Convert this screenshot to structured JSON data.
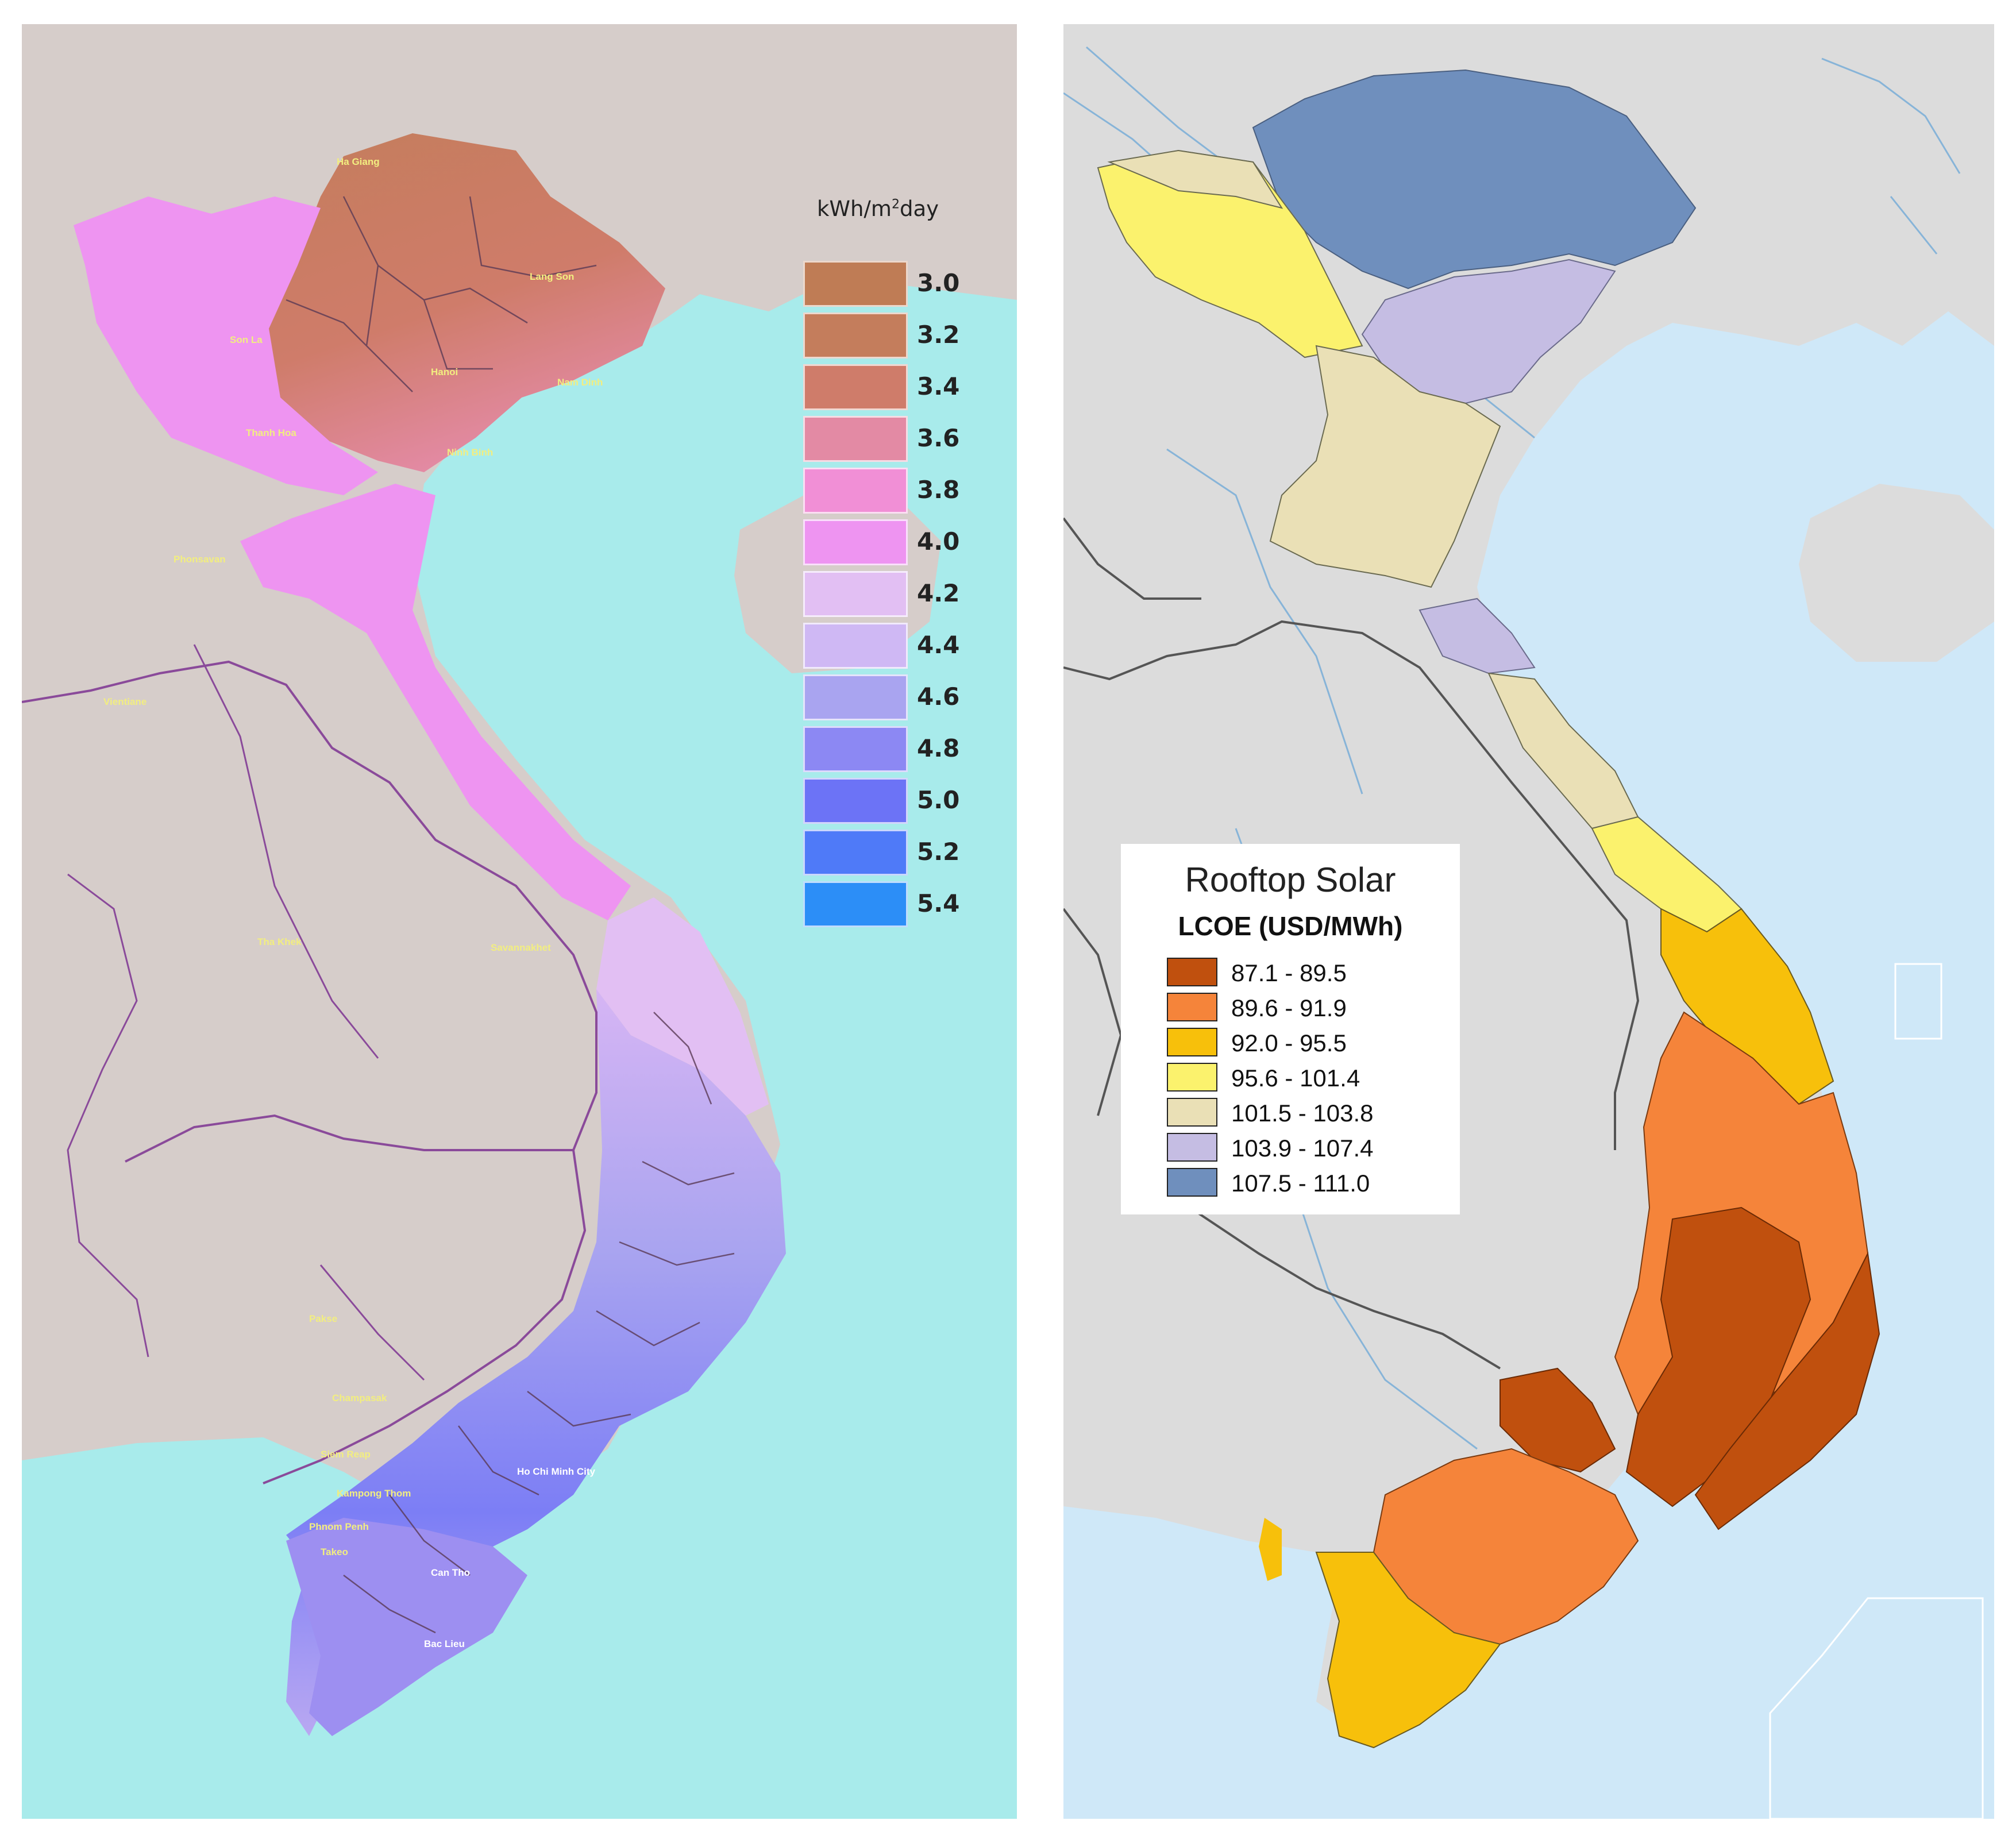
{
  "left_map": {
    "legend_title": "kWh/m",
    "legend_title_sup": "2",
    "legend_title_suffix": "day",
    "legend": [
      {
        "label": "3.0",
        "color": "#bf7c55"
      },
      {
        "label": "3.2",
        "color": "#c47d5c"
      },
      {
        "label": "3.4",
        "color": "#cf7c6a"
      },
      {
        "label": "3.6",
        "color": "#e38aa4"
      },
      {
        "label": "3.8",
        "color": "#f18fd6"
      },
      {
        "label": "4.0",
        "color": "#ee94f1"
      },
      {
        "label": "4.2",
        "color": "#e2bff3"
      },
      {
        "label": "4.4",
        "color": "#cfb8f4"
      },
      {
        "label": "4.6",
        "color": "#a9a4f0"
      },
      {
        "label": "4.8",
        "color": "#8c88f3"
      },
      {
        "label": "5.0",
        "color": "#6c73f6"
      },
      {
        "label": "5.2",
        "color": "#4f7af8"
      },
      {
        "label": "5.4",
        "color": "#2c8ef7"
      }
    ],
    "cities": [
      "Ha Giang",
      "Lang Son",
      "Son La",
      "Hanoi",
      "Nam Dinh",
      "Thanh Hoa",
      "Ninh Binh",
      "Phonsavan",
      "Vientiane",
      "Tha Khek",
      "Savannakhet",
      "Pakse",
      "Champasak",
      "Siem Reap",
      "Kampong Thom",
      "Phnom Penh",
      "Takeo",
      "Ho Chi Minh City",
      "Can Tho",
      "Bac Lieu"
    ],
    "colors": {
      "land": "#d6cdca",
      "sea": "#a8ebeb",
      "border": "#8a4a9a",
      "province": "#5a3a55",
      "city_text": "#f2ee80"
    }
  },
  "right_map": {
    "legend_title": "Rooftop Solar",
    "legend_subtitle": "LCOE (USD/MWh)",
    "legend": [
      {
        "label": "87.1 - 89.5",
        "color": "#c0500e"
      },
      {
        "label": "89.6 - 91.9",
        "color": "#f5843a"
      },
      {
        "label": "92.0 - 95.5",
        "color": "#f7c00b"
      },
      {
        "label": "95.6 - 101.4",
        "color": "#fbf26d"
      },
      {
        "label": "101.5 - 103.8",
        "color": "#eae0b6"
      },
      {
        "label": "103.9 - 107.4",
        "color": "#c5bde3"
      },
      {
        "label": "107.5 - 111.0",
        "color": "#6f8fbd"
      }
    ],
    "colors": {
      "land": "#dcdcdc",
      "sea": "#cfe8f8",
      "border": "#555555",
      "river": "#87b4d8",
      "province": "#5a5a5a"
    }
  }
}
